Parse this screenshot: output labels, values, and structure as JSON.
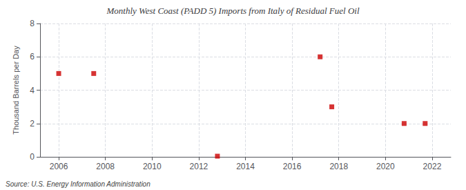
{
  "chart_data": {
    "type": "scatter",
    "title": "Monthly West Coast (PADD 5) Imports from Italy of Residual Fuel Oil",
    "ylabel": "Thousand Barrels per Day",
    "annotations": [
      "Source: U.S. Energy Information Administration"
    ],
    "x": [
      2006.0,
      2007.5,
      2012.8,
      2017.2,
      2017.7,
      2020.8,
      2021.7
    ],
    "values": [
      5,
      5,
      0.04,
      6,
      3,
      2,
      2
    ],
    "color": "#cc0000",
    "marker": "square",
    "xlim": [
      2005.2,
      2022.8
    ],
    "xticks": [
      2006,
      2008,
      2010,
      2012,
      2014,
      2016,
      2018,
      2020,
      2022
    ],
    "ylim": [
      0,
      8
    ],
    "yticks": [
      0,
      2,
      4,
      6,
      8
    ],
    "grid": true
  }
}
